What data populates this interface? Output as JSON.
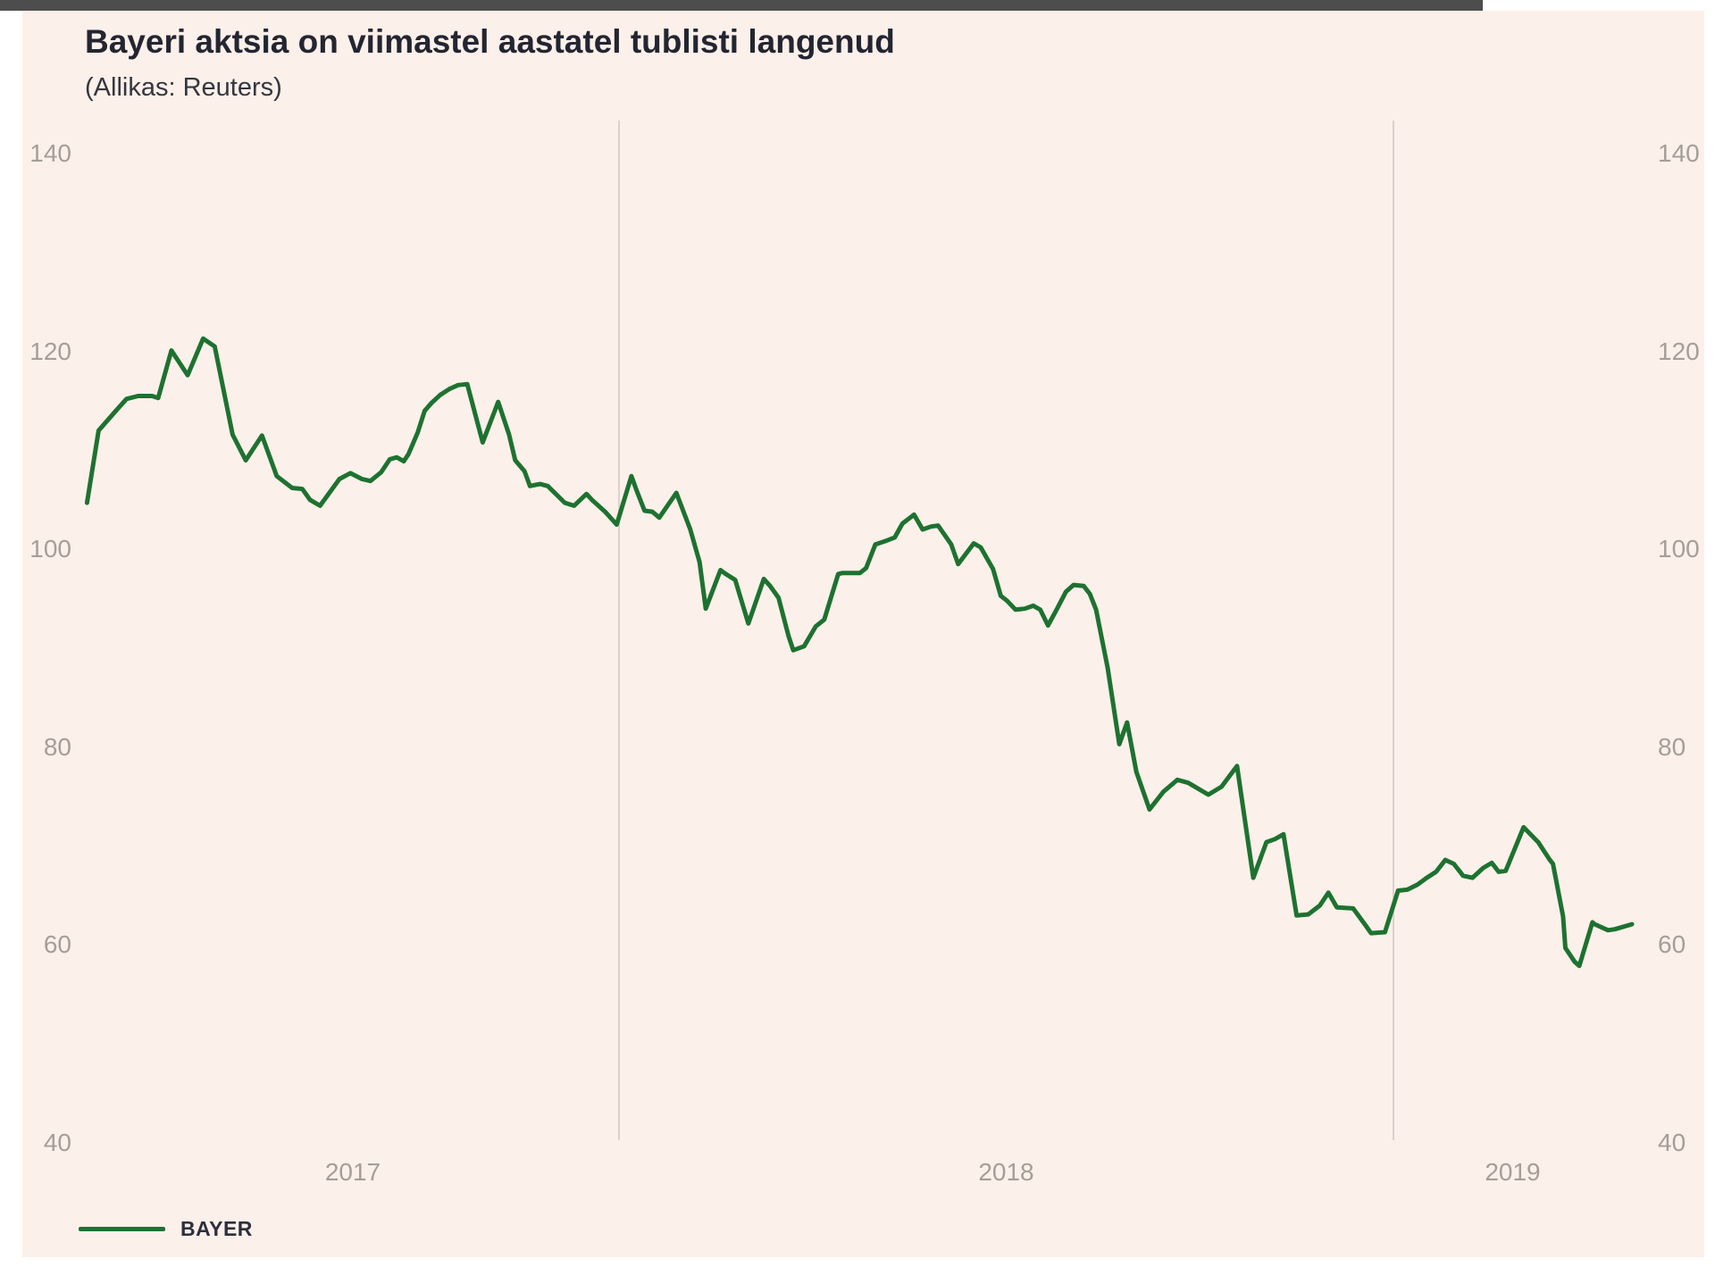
{
  "title": "Bayeri aktsia on viimastel aastatel tublisti langenud",
  "subtitle": "(Allikas: Reuters)",
  "legend": {
    "label": "BAYER"
  },
  "colors": {
    "page_bg": "#ffffff",
    "panel_bg": "#fcf0ea",
    "top_bar": "#4d4d4d",
    "grid": "#d9d2cd",
    "tick_text": "#a59e98",
    "title_text": "#232531",
    "subtitle_text": "#35363f",
    "line": "#1d7230",
    "legend_text": "#2d2f3e"
  },
  "chart_data": {
    "type": "line",
    "title": "Bayeri aktsia on viimastel aastatel tublisti langenud",
    "source_note": "(Allikas: Reuters)",
    "grid": "vertical-year-lines-only",
    "legend_position": "bottom-left",
    "y_axis": {
      "ticks": [
        140,
        120,
        100,
        80,
        60,
        40
      ],
      "range": [
        40,
        140
      ],
      "label_sides": "both"
    },
    "x_axis": {
      "tick_labels": [
        "2017",
        "2018",
        "2019"
      ],
      "gridlines_at_years": [
        2018,
        2019
      ],
      "range_decimal_years": [
        2017.313,
        2019.308
      ]
    },
    "series": [
      {
        "name": "BAYER",
        "color": "#1d7230",
        "points": [
          [
            2017.313,
            104.7
          ],
          [
            2017.328,
            112.0
          ],
          [
            2017.347,
            113.7
          ],
          [
            2017.364,
            115.2
          ],
          [
            2017.379,
            115.5
          ],
          [
            2017.397,
            115.5
          ],
          [
            2017.405,
            115.3
          ],
          [
            2017.422,
            120.1
          ],
          [
            2017.443,
            117.6
          ],
          [
            2017.463,
            121.3
          ],
          [
            2017.478,
            120.5
          ],
          [
            2017.501,
            111.6
          ],
          [
            2017.518,
            109.0
          ],
          [
            2017.539,
            111.5
          ],
          [
            2017.558,
            107.4
          ],
          [
            2017.578,
            106.2
          ],
          [
            2017.591,
            106.1
          ],
          [
            2017.601,
            105.0
          ],
          [
            2017.614,
            104.4
          ],
          [
            2017.639,
            107.1
          ],
          [
            2017.653,
            107.7
          ],
          [
            2017.668,
            107.1
          ],
          [
            2017.679,
            106.9
          ],
          [
            2017.693,
            107.8
          ],
          [
            2017.704,
            109.1
          ],
          [
            2017.713,
            109.3
          ],
          [
            2017.722,
            108.9
          ],
          [
            2017.728,
            109.6
          ],
          [
            2017.74,
            111.8
          ],
          [
            2017.749,
            114.0
          ],
          [
            2017.758,
            114.8
          ],
          [
            2017.769,
            115.6
          ],
          [
            2017.781,
            116.2
          ],
          [
            2017.792,
            116.6
          ],
          [
            2017.804,
            116.7
          ],
          [
            2017.824,
            110.8
          ],
          [
            2017.844,
            114.9
          ],
          [
            2017.858,
            111.6
          ],
          [
            2017.866,
            109.0
          ],
          [
            2017.878,
            107.9
          ],
          [
            2017.885,
            106.4
          ],
          [
            2017.898,
            106.6
          ],
          [
            2017.908,
            106.4
          ],
          [
            2017.93,
            104.7
          ],
          [
            2017.942,
            104.4
          ],
          [
            2017.958,
            105.6
          ],
          [
            2017.965,
            105.0
          ],
          [
            2017.982,
            103.8
          ],
          [
            2017.997,
            102.5
          ],
          [
            2018.016,
            107.4
          ],
          [
            2018.023,
            105.9
          ],
          [
            2018.033,
            103.9
          ],
          [
            2018.043,
            103.8
          ],
          [
            2018.052,
            103.2
          ],
          [
            2018.074,
            105.7
          ],
          [
            2018.092,
            102.0
          ],
          [
            2018.104,
            98.7
          ],
          [
            2018.112,
            94.0
          ],
          [
            2018.131,
            97.9
          ],
          [
            2018.138,
            97.5
          ],
          [
            2018.15,
            96.9
          ],
          [
            2018.167,
            92.5
          ],
          [
            2018.187,
            97.0
          ],
          [
            2018.195,
            96.3
          ],
          [
            2018.206,
            95.1
          ],
          [
            2018.219,
            91.2
          ],
          [
            2018.225,
            89.8
          ],
          [
            2018.239,
            90.2
          ],
          [
            2018.254,
            92.2
          ],
          [
            2018.265,
            92.9
          ],
          [
            2018.283,
            97.5
          ],
          [
            2018.288,
            97.6
          ],
          [
            2018.311,
            97.6
          ],
          [
            2018.319,
            98.1
          ],
          [
            2018.331,
            100.5
          ],
          [
            2018.343,
            100.8
          ],
          [
            2018.356,
            101.2
          ],
          [
            2018.366,
            102.6
          ],
          [
            2018.381,
            103.5
          ],
          [
            2018.392,
            102.0
          ],
          [
            2018.403,
            102.3
          ],
          [
            2018.412,
            102.4
          ],
          [
            2018.429,
            100.5
          ],
          [
            2018.438,
            98.5
          ],
          [
            2018.458,
            100.6
          ],
          [
            2018.467,
            100.2
          ],
          [
            2018.483,
            98.0
          ],
          [
            2018.493,
            95.3
          ],
          [
            2018.501,
            94.8
          ],
          [
            2018.512,
            93.9
          ],
          [
            2018.524,
            94.0
          ],
          [
            2018.535,
            94.3
          ],
          [
            2018.544,
            93.9
          ],
          [
            2018.554,
            92.3
          ],
          [
            2018.565,
            93.9
          ],
          [
            2018.577,
            95.7
          ],
          [
            2018.587,
            96.4
          ],
          [
            2018.6,
            96.3
          ],
          [
            2018.608,
            95.5
          ],
          [
            2018.616,
            93.9
          ],
          [
            2018.631,
            88.0
          ],
          [
            2018.646,
            80.3
          ],
          [
            2018.656,
            82.5
          ],
          [
            2018.668,
            77.5
          ],
          [
            2018.685,
            73.7
          ],
          [
            2018.703,
            75.5
          ],
          [
            2018.721,
            76.7
          ],
          [
            2018.735,
            76.4
          ],
          [
            2018.761,
            75.2
          ],
          [
            2018.778,
            76.0
          ],
          [
            2018.798,
            78.1
          ],
          [
            2018.819,
            66.8
          ],
          [
            2018.836,
            70.4
          ],
          [
            2018.847,
            70.7
          ],
          [
            2018.858,
            71.2
          ],
          [
            2018.875,
            63.0
          ],
          [
            2018.89,
            63.1
          ],
          [
            2018.905,
            64.0
          ],
          [
            2018.916,
            65.3
          ],
          [
            2018.927,
            63.8
          ],
          [
            2018.948,
            63.7
          ],
          [
            2018.963,
            62.1
          ],
          [
            2018.971,
            61.2
          ],
          [
            2018.989,
            61.3
          ],
          [
            2019.006,
            65.5
          ],
          [
            2019.018,
            65.6
          ],
          [
            2019.031,
            66.1
          ],
          [
            2019.043,
            66.8
          ],
          [
            2019.055,
            67.4
          ],
          [
            2019.067,
            68.6
          ],
          [
            2019.078,
            68.2
          ],
          [
            2019.09,
            67.0
          ],
          [
            2019.102,
            66.8
          ],
          [
            2019.116,
            67.8
          ],
          [
            2019.127,
            68.3
          ],
          [
            2019.136,
            67.4
          ],
          [
            2019.145,
            67.5
          ],
          [
            2019.168,
            71.9
          ],
          [
            2019.187,
            70.4
          ],
          [
            2019.202,
            68.6
          ],
          [
            2019.206,
            68.2
          ],
          [
            2019.219,
            62.9
          ],
          [
            2019.222,
            59.7
          ],
          [
            2019.234,
            58.3
          ],
          [
            2019.24,
            57.9
          ],
          [
            2019.257,
            62.3
          ],
          [
            2019.26,
            62.1
          ],
          [
            2019.277,
            61.5
          ],
          [
            2019.286,
            61.6
          ],
          [
            2019.308,
            62.1
          ]
        ]
      }
    ]
  }
}
